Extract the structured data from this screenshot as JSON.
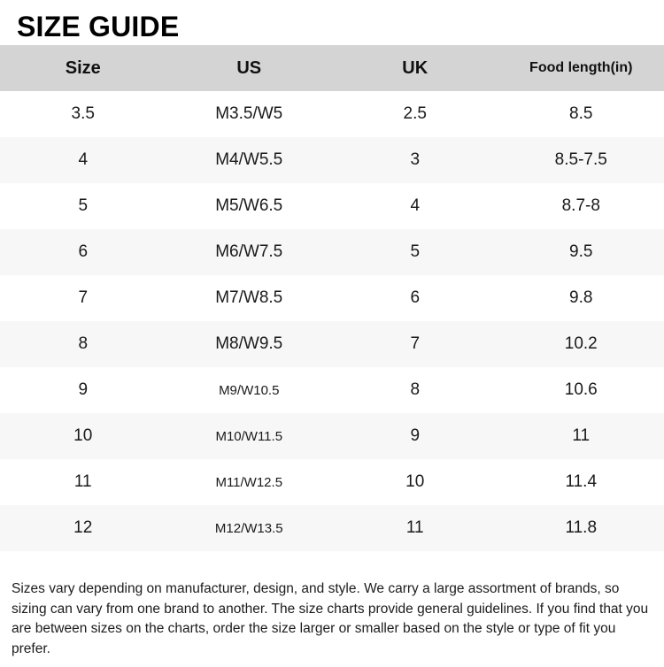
{
  "title": "SIZE GUIDE",
  "table": {
    "columns": [
      "Size",
      "US",
      "UK",
      "Food length(in)"
    ],
    "rows": [
      [
        "3.5",
        "M3.5/W5",
        "2.5",
        "8.5"
      ],
      [
        "4",
        "M4/W5.5",
        "3",
        "8.5-7.5"
      ],
      [
        "5",
        "M5/W6.5",
        "4",
        "8.7-8"
      ],
      [
        "6",
        "M6/W7.5",
        "5",
        "9.5"
      ],
      [
        "7",
        "M7/W8.5",
        "6",
        "9.8"
      ],
      [
        "8",
        "M8/W9.5",
        "7",
        "10.2"
      ],
      [
        "9",
        "M9/W10.5",
        "8",
        "10.6"
      ],
      [
        "10",
        "M10/W11.5",
        "9",
        "11"
      ],
      [
        "11",
        "M11/W12.5",
        "10",
        "11.4"
      ],
      [
        "12",
        "M12/W13.5",
        "11",
        "11.8"
      ]
    ]
  },
  "footer": {
    "note": "Sizes vary depending on manufacturer, design, and style. We carry a large assortment of brands, so sizing can vary from one brand to another. The size charts provide general guidelines. If you find that you are between sizes on the charts, order the size larger or smaller based on the style or type of fit you prefer."
  },
  "colors": {
    "header_bg": "#d4d4d4",
    "row_alt_bg": "#f7f7f7",
    "text": "#1a1a1a"
  }
}
